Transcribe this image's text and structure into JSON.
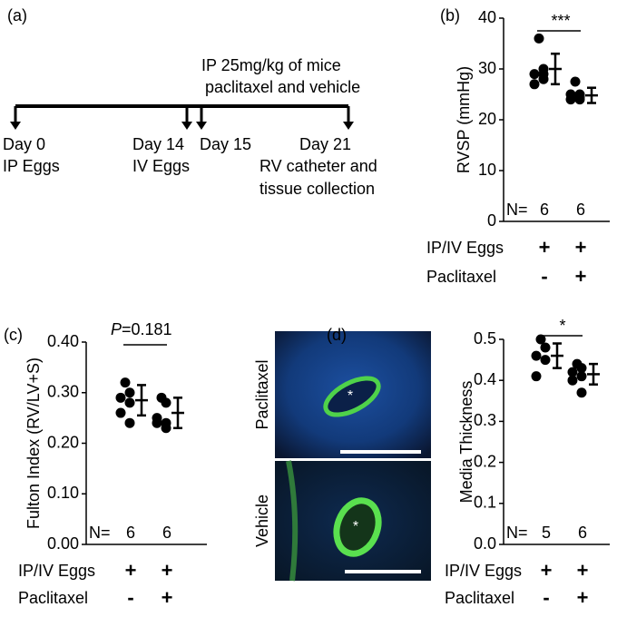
{
  "timeline": {
    "panel_label": "(a)",
    "treatment": [
      "IP 25mg/kg of mice",
      "paclitaxel and vehicle"
    ],
    "events": [
      {
        "day": "Day 0",
        "lines": [
          "IP Eggs"
        ]
      },
      {
        "day": "Day 14",
        "lines": [
          "IV Eggs"
        ]
      },
      {
        "day": "Day 15",
        "lines": []
      },
      {
        "day": "Day 21",
        "lines": [
          "RV catheter and",
          "tissue collection"
        ]
      }
    ]
  },
  "images": {
    "rows": [
      "Paclitaxel",
      "Vehicle"
    ],
    "lumen_marker": "*"
  },
  "chart_data": [
    {
      "type": "dot",
      "panel_label": "(b)",
      "y_label": "RVSP (mmHg)",
      "ylim": [
        0,
        40
      ],
      "yticks": [
        0,
        10,
        20,
        30,
        40
      ],
      "n_label": "N=",
      "n": [
        6,
        6
      ],
      "significance": "***",
      "conditions": [
        {
          "label": "IP/IV Eggs",
          "marks": [
            "+",
            "+"
          ]
        },
        {
          "label": "Paclitaxel",
          "marks": [
            "-",
            "+"
          ]
        }
      ],
      "groups": [
        {
          "points": [
            36,
            30,
            29,
            28,
            27,
            29
          ],
          "mean": 30,
          "sd": 3
        },
        {
          "points": [
            27.5,
            25,
            25,
            24.5,
            24,
            24
          ],
          "mean": 24.8,
          "sd": 1.5
        }
      ]
    },
    {
      "type": "dot",
      "panel_label": "(c)",
      "y_label": "Fulton Index (RV/LV+S)",
      "ylim": [
        0,
        0.4
      ],
      "yticks": [
        {
          "value": 0,
          "label": "0.00"
        },
        {
          "value": 0.1,
          "label": "0.10"
        },
        {
          "value": 0.2,
          "label": "0.20"
        },
        {
          "value": 0.3,
          "label": "0.30"
        },
        {
          "value": 0.4,
          "label": "0.40"
        }
      ],
      "n_label": "N=",
      "n": [
        6,
        6
      ],
      "p_symbol": "P",
      "p_text": "=0.181",
      "conditions": [
        {
          "label": "IP/IV Eggs",
          "marks": [
            "+",
            "+"
          ]
        },
        {
          "label": "Paclitaxel",
          "marks": [
            "-",
            "+"
          ]
        }
      ],
      "groups": [
        {
          "points": [
            0.32,
            0.3,
            0.29,
            0.28,
            0.26,
            0.24
          ],
          "mean": 0.285,
          "sd": 0.03
        },
        {
          "points": [
            0.29,
            0.28,
            0.25,
            0.24,
            0.24,
            0.23
          ],
          "mean": 0.26,
          "sd": 0.03
        }
      ]
    },
    {
      "type": "dot",
      "panel_label": "(d)",
      "y_label": "Media Thickness",
      "ylim": [
        0,
        0.5
      ],
      "yticks": [
        {
          "value": 0,
          "label": "0.0"
        },
        0.1,
        0.2,
        0.3,
        0.4,
        0.5
      ],
      "n_label": "N=",
      "n": [
        5,
        6
      ],
      "significance": "*",
      "conditions": [
        {
          "label": "IP/IV Eggs",
          "marks": [
            "+",
            "+"
          ]
        },
        {
          "label": "Paclitaxel",
          "marks": [
            "-",
            "+"
          ]
        }
      ],
      "groups": [
        {
          "points": [
            0.5,
            0.48,
            0.46,
            0.45,
            0.41
          ],
          "mean": 0.46,
          "sd": 0.03
        },
        {
          "points": [
            0.44,
            0.43,
            0.42,
            0.41,
            0.4,
            0.37
          ],
          "mean": 0.415,
          "sd": 0.025
        }
      ]
    }
  ]
}
